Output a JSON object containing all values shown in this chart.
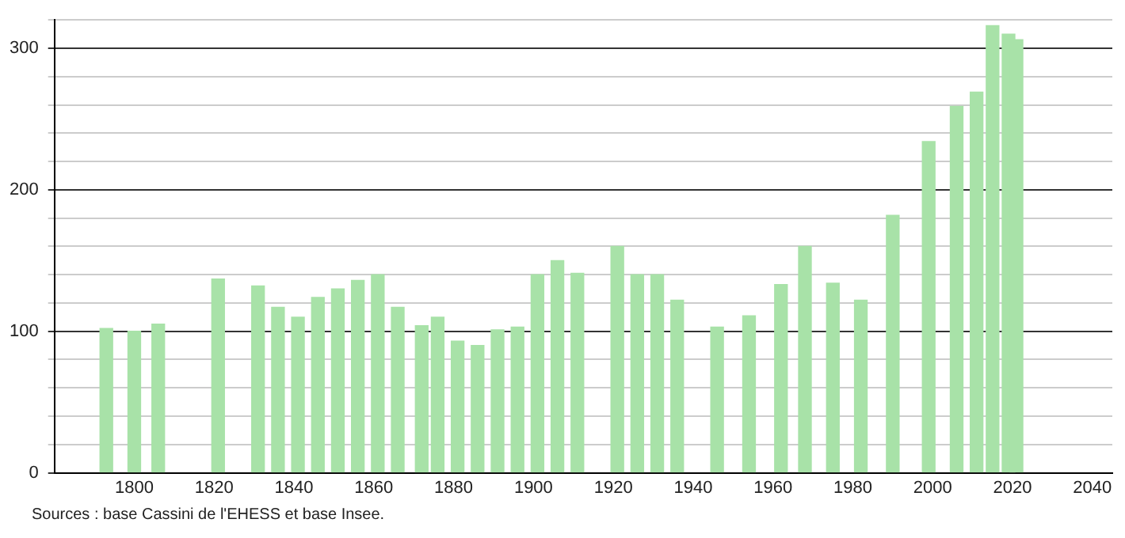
{
  "chart_data": {
    "type": "bar",
    "color": "#a8e2a8",
    "x": [
      1793,
      1800,
      1806,
      1821,
      1831,
      1836,
      1841,
      1846,
      1851,
      1856,
      1861,
      1866,
      1872,
      1876,
      1881,
      1886,
      1891,
      1896,
      1901,
      1906,
      1911,
      1921,
      1926,
      1931,
      1936,
      1946,
      1954,
      1962,
      1968,
      1975,
      1982,
      1990,
      1999,
      2006,
      2011,
      2015,
      2019,
      2021
    ],
    "values": [
      102,
      100,
      105,
      137,
      132,
      117,
      110,
      124,
      130,
      136,
      140,
      117,
      104,
      110,
      93,
      90,
      101,
      103,
      140,
      150,
      141,
      160,
      140,
      140,
      122,
      103,
      111,
      133,
      160,
      134,
      122,
      182,
      234,
      259,
      269,
      316,
      310,
      306
    ],
    "xlim": [
      1780,
      2045
    ],
    "xticks": [
      1800,
      1820,
      1840,
      1860,
      1880,
      1900,
      1920,
      1940,
      1960,
      1980,
      2000,
      2020,
      2040
    ],
    "ylim": [
      0,
      320
    ],
    "yticks": [
      0,
      {
        "value": 20,
        "label": null
      },
      {
        "value": 40,
        "label": null
      },
      {
        "value": 60,
        "label": null
      },
      {
        "value": 80,
        "label": null
      },
      100,
      {
        "value": 120,
        "label": null
      },
      {
        "value": 140,
        "label": null
      },
      {
        "value": 160,
        "label": null
      },
      {
        "value": 180,
        "label": null
      },
      200,
      {
        "value": 220,
        "label": null
      },
      {
        "value": 240,
        "label": null
      },
      {
        "value": 260,
        "label": null
      },
      {
        "value": 280,
        "label": null
      },
      300,
      {
        "value": 320,
        "label": null
      }
    ],
    "grid": "y",
    "annotations": [
      "Sources : base Cassini de l'EHESS et base Insee."
    ]
  }
}
